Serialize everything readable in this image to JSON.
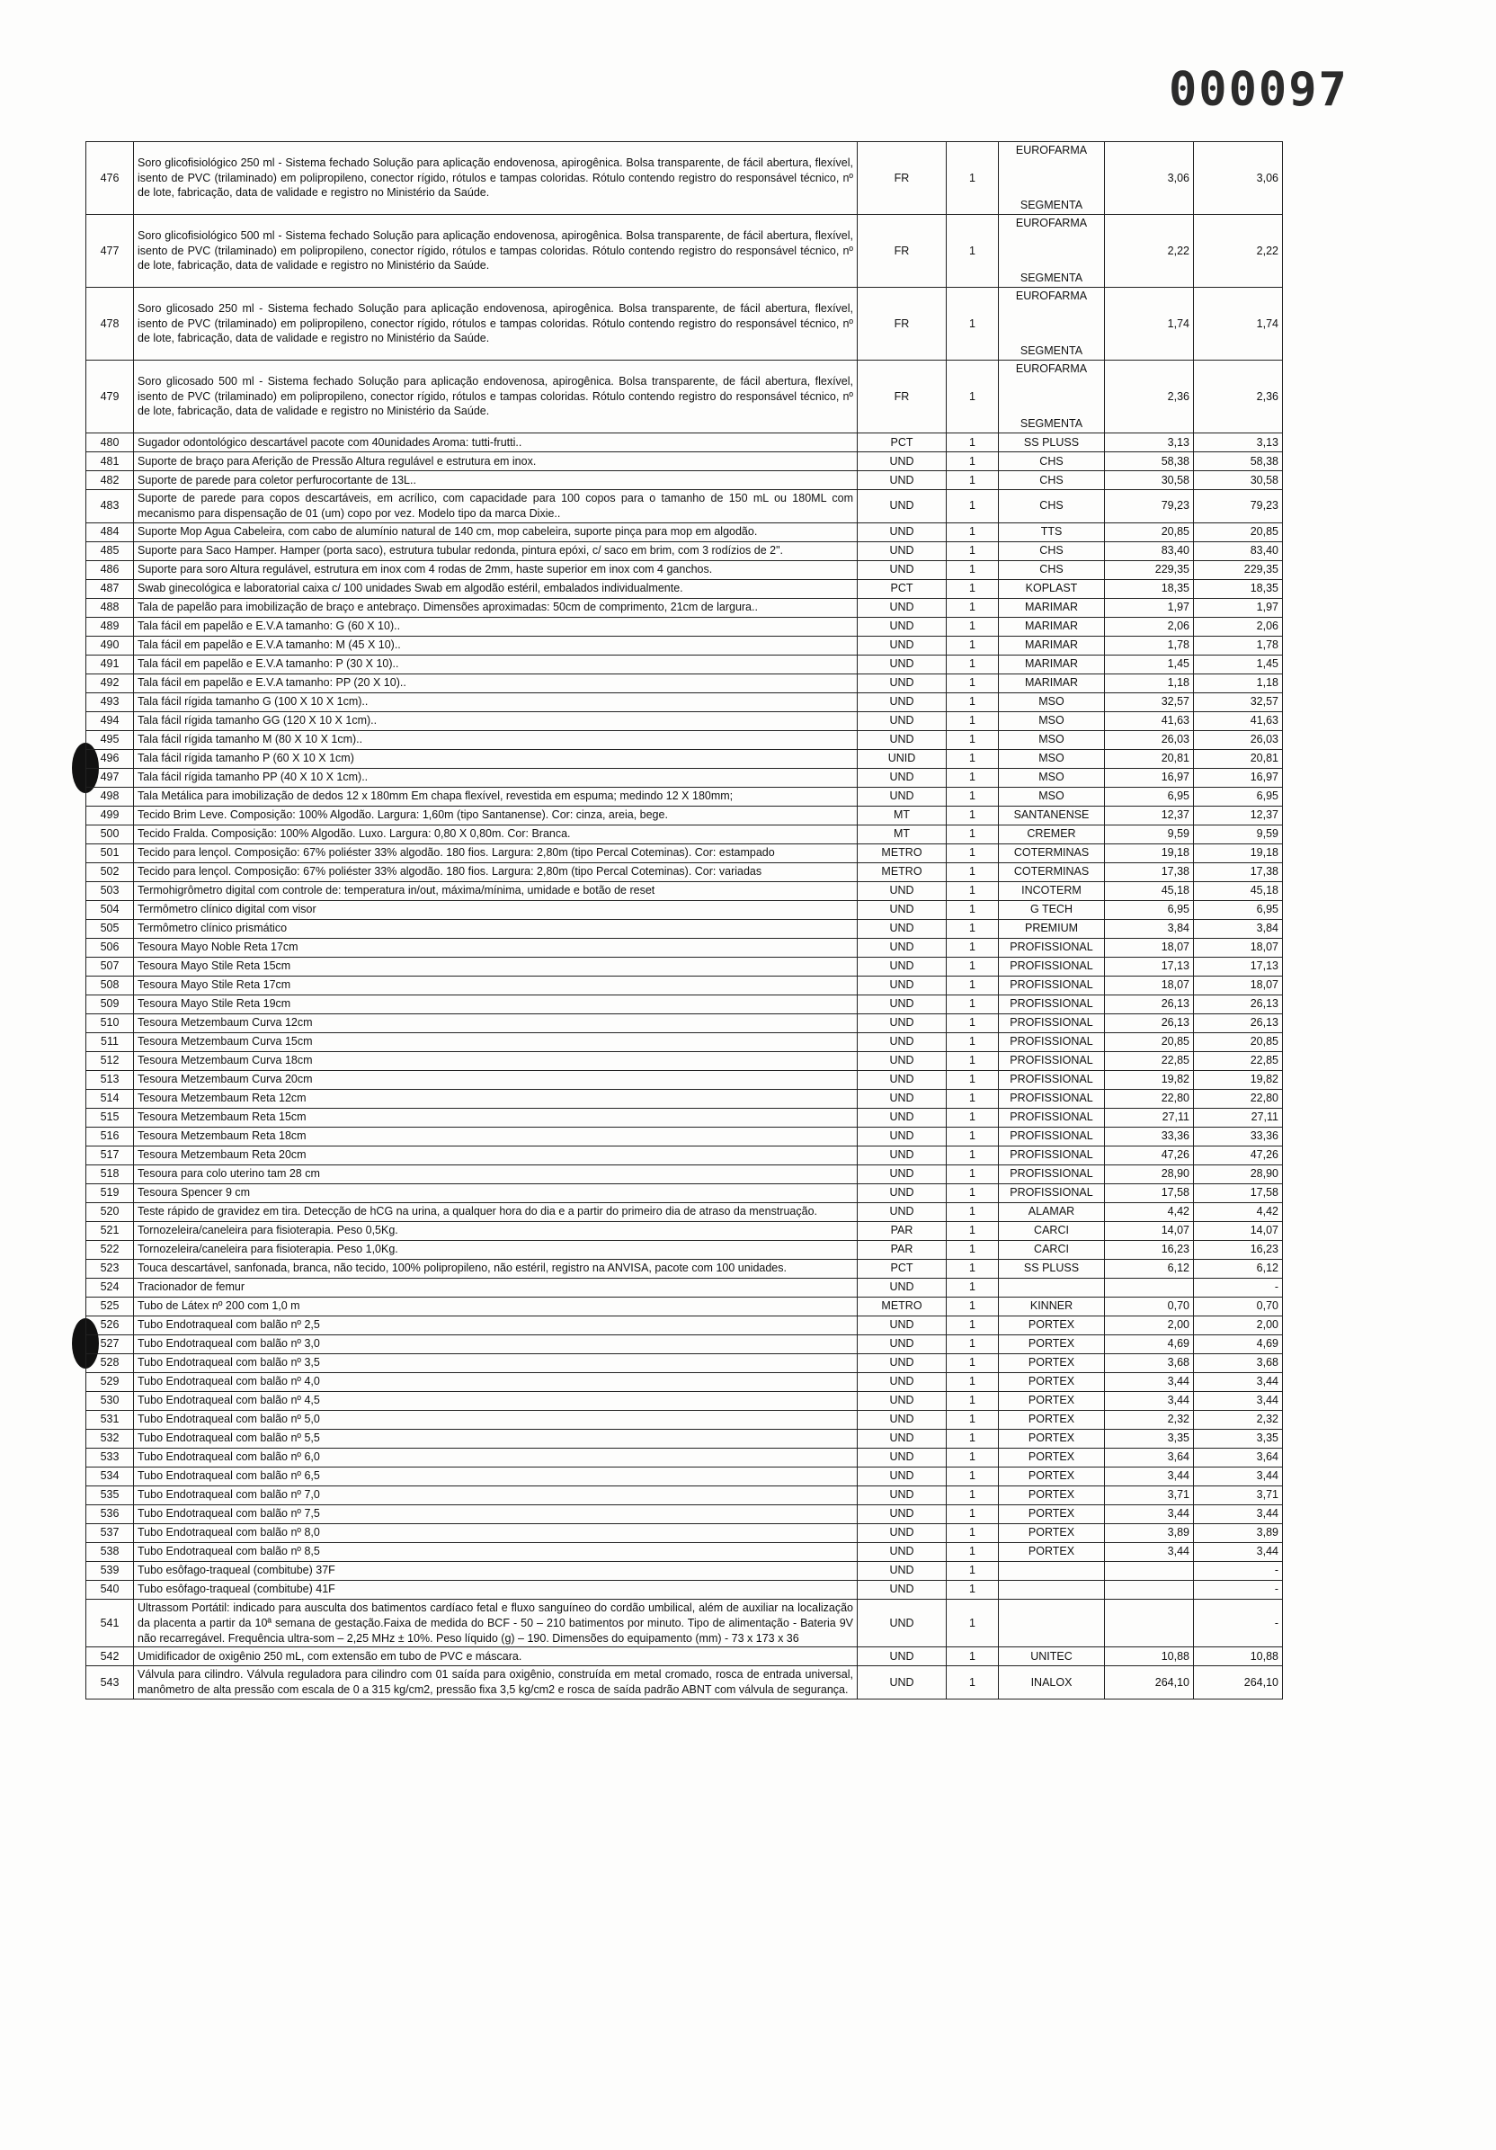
{
  "page_number": "000097",
  "table": {
    "rows": [
      [
        476,
        "Soro glicofisiológico 250 ml - Sistema fechado Solução para aplicação endovenosa, apirogênica. Bolsa transparente, de fácil abertura, flexível, isento de PVC (trilaminado) em polipropileno, conector rígido, rótulos e tampas coloridas. Rótulo contendo registro do responsável técnico, nº de lote, fabricação, data de validade e registro no Ministério da Saúde.",
        "FR",
        1,
        [
          "EUROFARMA",
          "SEGMENTA"
        ],
        "3,06",
        "3,06"
      ],
      [
        477,
        "Soro glicofisiológico 500 ml - Sistema fechado Solução para aplicação endovenosa, apirogênica. Bolsa transparente, de fácil abertura, flexível, isento de PVC (trilaminado) em polipropileno, conector rígido, rótulos e tampas coloridas. Rótulo contendo registro do responsável técnico, nº de lote, fabricação, data de validade e registro no Ministério da Saúde.",
        "FR",
        1,
        [
          "EUROFARMA",
          "SEGMENTA"
        ],
        "2,22",
        "2,22"
      ],
      [
        478,
        "Soro glicosado 250 ml - Sistema fechado Solução para aplicação endovenosa, apirogênica. Bolsa transparente, de fácil abertura, flexível, isento de PVC (trilaminado) em polipropileno, conector rígido, rótulos e tampas coloridas. Rótulo contendo registro do responsável técnico, nº de lote, fabricação, data de validade e registro no Ministério da Saúde.",
        "FR",
        1,
        [
          "EUROFARMA",
          "SEGMENTA"
        ],
        "1,74",
        "1,74"
      ],
      [
        479,
        "Soro glicosado 500 ml - Sistema fechado Solução para aplicação endovenosa, apirogênica. Bolsa transparente, de fácil abertura, flexível, isento de PVC (trilaminado) em polipropileno, conector rígido, rótulos e tampas coloridas. Rótulo contendo registro do responsável técnico, nº de lote, fabricação, data de validade e registro no Ministério da Saúde.",
        "FR",
        1,
        [
          "EUROFARMA",
          "SEGMENTA"
        ],
        "2,36",
        "2,36"
      ],
      [
        480,
        "Sugador odontológico descartável pacote com 40unidades Aroma: tutti-frutti..",
        "PCT",
        1,
        "SS PLUSS",
        "3,13",
        "3,13"
      ],
      [
        481,
        "Suporte de braço para Aferição de Pressão Altura regulável e estrutura em inox.",
        "UND",
        1,
        "CHS",
        "58,38",
        "58,38"
      ],
      [
        482,
        "Suporte de parede para coletor perfurocortante de 13L..",
        "UND",
        1,
        "CHS",
        "30,58",
        "30,58"
      ],
      [
        483,
        "Suporte de parede para copos descartáveis, em acrílico, com capacidade para 100 copos para o tamanho de 150 mL ou 180ML com mecanismo para dispensação de 01 (um) copo por vez. Modelo tipo da marca Dixie..",
        "UND",
        1,
        "CHS",
        "79,23",
        "79,23"
      ],
      [
        484,
        "Suporte Mop Agua Cabeleira, com cabo de alumínio natural de 140 cm, mop cabeleira, suporte pinça para mop em algodão.",
        "UND",
        1,
        "TTS",
        "20,85",
        "20,85"
      ],
      [
        485,
        "Suporte para Saco Hamper. Hamper (porta saco), estrutura tubular redonda, pintura epóxi, c/ saco em brim, com 3 rodízios de 2\".",
        "UND",
        1,
        "CHS",
        "83,40",
        "83,40"
      ],
      [
        486,
        "Suporte para soro Altura regulável, estrutura em inox com 4 rodas de 2mm, haste superior em inox com 4 ganchos.",
        "UND",
        1,
        "CHS",
        "229,35",
        "229,35"
      ],
      [
        487,
        "Swab ginecológica e laboratorial caixa c/ 100 unidades Swab em algodão estéril, embalados individualmente.",
        "PCT",
        1,
        "KOPLAST",
        "18,35",
        "18,35"
      ],
      [
        488,
        "Tala de papelão para imobilização de braço e antebraço. Dimensões aproximadas: 50cm de comprimento, 21cm de largura..",
        "UND",
        1,
        "MARIMAR",
        "1,97",
        "1,97"
      ],
      [
        489,
        "Tala fácil em papelão e E.V.A tamanho: G (60 X 10)..",
        "UND",
        1,
        "MARIMAR",
        "2,06",
        "2,06"
      ],
      [
        490,
        "Tala fácil em papelão e E.V.A tamanho: M (45 X 10)..",
        "UND",
        1,
        "MARIMAR",
        "1,78",
        "1,78"
      ],
      [
        491,
        "Tala fácil em papelão e E.V.A tamanho: P (30 X 10)..",
        "UND",
        1,
        "MARIMAR",
        "1,45",
        "1,45"
      ],
      [
        492,
        "Tala fácil em papelão e E.V.A tamanho: PP (20 X 10)..",
        "UND",
        1,
        "MARIMAR",
        "1,18",
        "1,18"
      ],
      [
        493,
        "Tala fácil rígida tamanho G (100 X 10 X 1cm)..",
        "UND",
        1,
        "MSO",
        "32,57",
        "32,57"
      ],
      [
        494,
        "Tala fácil rígida tamanho GG (120 X 10 X 1cm)..",
        "UND",
        1,
        "MSO",
        "41,63",
        "41,63"
      ],
      [
        495,
        "Tala fácil rígida tamanho M (80 X 10 X 1cm)..",
        "UND",
        1,
        "MSO",
        "26,03",
        "26,03"
      ],
      [
        496,
        "Tala fácil rígida tamanho P (60 X 10 X 1cm)",
        "UNID",
        1,
        "MSO",
        "20,81",
        "20,81"
      ],
      [
        497,
        "Tala fácil rígida tamanho PP (40 X 10 X 1cm)..",
        "UND",
        1,
        "MSO",
        "16,97",
        "16,97"
      ],
      [
        498,
        "Tala Metálica para imobilização de dedos 12 x 180mm Em chapa flexível, revestida em espuma; medindo 12 X 180mm;",
        "UND",
        1,
        "MSO",
        "6,95",
        "6,95"
      ],
      [
        499,
        "Tecido Brim Leve. Composição: 100% Algodão. Largura: 1,60m (tipo Santanense). Cor: cinza, areia, bege.",
        "MT",
        1,
        "SANTANENSE",
        "12,37",
        "12,37"
      ],
      [
        500,
        "Tecido Fralda. Composição: 100% Algodão. Luxo. Largura: 0,80 X 0,80m. Cor: Branca.",
        "MT",
        1,
        "CREMER",
        "9,59",
        "9,59"
      ],
      [
        501,
        "Tecido para lençol. Composição: 67% poliéster 33% algodão. 180 fios. Largura: 2,80m (tipo Percal Coteminas). Cor: estampado",
        "METRO",
        1,
        "COTERMINAS",
        "19,18",
        "19,18"
      ],
      [
        502,
        "Tecido para lençol. Composição: 67% poliéster 33% algodão. 180 fios. Largura: 2,80m (tipo Percal Coteminas). Cor: variadas",
        "METRO",
        1,
        "COTERMINAS",
        "17,38",
        "17,38"
      ],
      [
        503,
        "Termohigrômetro digital com controle de: temperatura in/out, máxima/mínima, umidade e botão de reset",
        "UND",
        1,
        "INCOTERM",
        "45,18",
        "45,18"
      ],
      [
        504,
        "Termômetro clínico digital com visor",
        "UND",
        1,
        "G TECH",
        "6,95",
        "6,95"
      ],
      [
        505,
        "Termômetro clínico prismático",
        "UND",
        1,
        "PREMIUM",
        "3,84",
        "3,84"
      ],
      [
        506,
        "Tesoura Mayo Noble Reta 17cm",
        "UND",
        1,
        "PROFISSIONAL",
        "18,07",
        "18,07"
      ],
      [
        507,
        "Tesoura Mayo Stile Reta 15cm",
        "UND",
        1,
        "PROFISSIONAL",
        "17,13",
        "17,13"
      ],
      [
        508,
        "Tesoura Mayo Stile Reta 17cm",
        "UND",
        1,
        "PROFISSIONAL",
        "18,07",
        "18,07"
      ],
      [
        509,
        "Tesoura Mayo Stile Reta 19cm",
        "UND",
        1,
        "PROFISSIONAL",
        "26,13",
        "26,13"
      ],
      [
        510,
        "Tesoura Metzembaum Curva 12cm",
        "UND",
        1,
        "PROFISSIONAL",
        "26,13",
        "26,13"
      ],
      [
        511,
        "Tesoura Metzembaum Curva 15cm",
        "UND",
        1,
        "PROFISSIONAL",
        "20,85",
        "20,85"
      ],
      [
        512,
        "Tesoura Metzembaum Curva 18cm",
        "UND",
        1,
        "PROFISSIONAL",
        "22,85",
        "22,85"
      ],
      [
        513,
        "Tesoura Metzembaum Curva 20cm",
        "UND",
        1,
        "PROFISSIONAL",
        "19,82",
        "19,82"
      ],
      [
        514,
        "Tesoura Metzembaum Reta 12cm",
        "UND",
        1,
        "PROFISSIONAL",
        "22,80",
        "22,80"
      ],
      [
        515,
        "Tesoura Metzembaum Reta 15cm",
        "UND",
        1,
        "PROFISSIONAL",
        "27,11",
        "27,11"
      ],
      [
        516,
        "Tesoura Metzembaum Reta 18cm",
        "UND",
        1,
        "PROFISSIONAL",
        "33,36",
        "33,36"
      ],
      [
        517,
        "Tesoura Metzembaum Reta 20cm",
        "UND",
        1,
        "PROFISSIONAL",
        "47,26",
        "47,26"
      ],
      [
        518,
        "Tesoura para colo uterino tam 28 cm",
        "UND",
        1,
        "PROFISSIONAL",
        "28,90",
        "28,90"
      ],
      [
        519,
        "Tesoura Spencer 9 cm",
        "UND",
        1,
        "PROFISSIONAL",
        "17,58",
        "17,58"
      ],
      [
        520,
        "Teste rápido de gravidez em tira. Detecção de hCG na urina, a qualquer hora do dia e a partir do primeiro dia de atraso da menstruação.",
        "UND",
        1,
        "ALAMAR",
        "4,42",
        "4,42"
      ],
      [
        521,
        "Tornozeleira/caneleira para fisioterapia. Peso 0,5Kg.",
        "PAR",
        1,
        "CARCI",
        "14,07",
        "14,07"
      ],
      [
        522,
        "Tornozeleira/caneleira para fisioterapia. Peso 1,0Kg.",
        "PAR",
        1,
        "CARCI",
        "16,23",
        "16,23"
      ],
      [
        523,
        "Touca descartável, sanfonada, branca, não tecido, 100% polipropileno, não estéril, registro na ANVISA, pacote com 100 unidades.",
        "PCT",
        1,
        "SS PLUSS",
        "6,12",
        "6,12"
      ],
      [
        524,
        "Tracionador de femur",
        "UND",
        1,
        null,
        null,
        "-"
      ],
      [
        525,
        "Tubo de Látex nº 200 com 1,0 m",
        "METRO",
        1,
        "KINNER",
        "0,70",
        "0,70"
      ],
      [
        526,
        "Tubo Endotraqueal com balão nº 2,5",
        "UND",
        1,
        "PORTEX",
        "2,00",
        "2,00"
      ],
      [
        527,
        "Tubo Endotraqueal com balão nº 3,0",
        "UND",
        1,
        "PORTEX",
        "4,69",
        "4,69"
      ],
      [
        528,
        "Tubo Endotraqueal com balão nº 3,5",
        "UND",
        1,
        "PORTEX",
        "3,68",
        "3,68"
      ],
      [
        529,
        "Tubo Endotraqueal com balão nº 4,0",
        "UND",
        1,
        "PORTEX",
        "3,44",
        "3,44"
      ],
      [
        530,
        "Tubo Endotraqueal com balão nº 4,5",
        "UND",
        1,
        "PORTEX",
        "3,44",
        "3,44"
      ],
      [
        531,
        "Tubo Endotraqueal com balão nº 5,0",
        "UND",
        1,
        "PORTEX",
        "2,32",
        "2,32"
      ],
      [
        532,
        "Tubo Endotraqueal com balão nº 5,5",
        "UND",
        1,
        "PORTEX",
        "3,35",
        "3,35"
      ],
      [
        533,
        "Tubo Endotraqueal com balão nº 6,0",
        "UND",
        1,
        "PORTEX",
        "3,64",
        "3,64"
      ],
      [
        534,
        "Tubo Endotraqueal com balão nº 6,5",
        "UND",
        1,
        "PORTEX",
        "3,44",
        "3,44"
      ],
      [
        535,
        "Tubo Endotraqueal com balão nº 7,0",
        "UND",
        1,
        "PORTEX",
        "3,71",
        "3,71"
      ],
      [
        536,
        "Tubo Endotraqueal com balão nº 7,5",
        "UND",
        1,
        "PORTEX",
        "3,44",
        "3,44"
      ],
      [
        537,
        "Tubo Endotraqueal com balão nº 8,0",
        "UND",
        1,
        "PORTEX",
        "3,89",
        "3,89"
      ],
      [
        538,
        "Tubo Endotraqueal com balão nº 8,5",
        "UND",
        1,
        "PORTEX",
        "3,44",
        "3,44"
      ],
      [
        539,
        "Tubo esôfago-traqueal (combitube) 37F",
        "UND",
        1,
        null,
        null,
        "-"
      ],
      [
        540,
        "Tubo esôfago-traqueal (combitube) 41F",
        "UND",
        1,
        null,
        null,
        "-"
      ],
      [
        541,
        "Ultrassom Portátil: indicado para ausculta dos batimentos cardíaco fetal e fluxo sanguíneo do cordão umbilical, além de auxiliar na localização da placenta a partir da 10ª semana de gestação.Faixa de medida do BCF - 50 – 210 batimentos por minuto. Tipo de alimentação - Bateria 9V não recarregável. Frequência ultra-som – 2,25 MHz ± 10%. Peso líquido (g) – 190. Dimensões do equipamento (mm) - 73 x 173 x 36",
        "UND",
        1,
        null,
        null,
        "-"
      ],
      [
        542,
        "Umidificador de oxigênio 250 mL, com extensão em tubo de PVC e máscara.",
        "UND",
        1,
        "UNITEC",
        "10,88",
        "10,88"
      ],
      [
        543,
        "Válvula para cilindro. Válvula reguladora para cilindro com 01 saída para oxigênio, construída em metal cromado, rosca de entrada universal, manômetro de alta pressão com escala de 0 a 315 kg/cm2, pressão fixa 3,5 kg/cm2 e rosca de saída padrão ABNT com válvula de segurança.",
        "UND",
        1,
        "INALOX",
        "264,10",
        "264,10"
      ]
    ]
  }
}
